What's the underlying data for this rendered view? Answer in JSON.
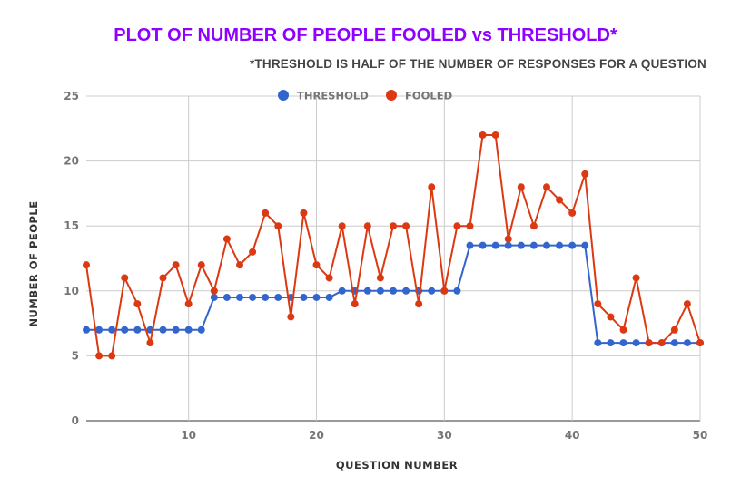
{
  "chart_data": {
    "type": "line",
    "title": "PLOT OF NUMBER OF PEOPLE FOOLED vs THRESHOLD*",
    "subtitle": "*THRESHOLD IS HALF OF THE NUMBER OF RESPONSES FOR A QUESTION",
    "xlabel": "QUESTION NUMBER",
    "ylabel": "NUMBER OF PEOPLE",
    "xlim": [
      2,
      50
    ],
    "ylim": [
      0,
      25
    ],
    "xticks": [
      10,
      20,
      30,
      40,
      50
    ],
    "yticks": [
      0,
      5,
      10,
      15,
      20,
      25
    ],
    "grid": true,
    "legend_position": "top-center",
    "x": [
      2,
      3,
      4,
      5,
      6,
      7,
      8,
      9,
      10,
      11,
      12,
      13,
      14,
      15,
      16,
      17,
      18,
      19,
      20,
      21,
      22,
      23,
      24,
      25,
      26,
      27,
      28,
      29,
      30,
      31,
      32,
      33,
      34,
      35,
      36,
      37,
      38,
      39,
      40,
      41,
      42,
      43,
      44,
      45,
      46,
      47,
      48,
      49,
      50
    ],
    "series": [
      {
        "name": "THRESHOLD",
        "color": "#3366cc",
        "values": [
          7,
          7,
          7,
          7,
          7,
          7,
          7,
          7,
          7,
          7,
          9.5,
          9.5,
          9.5,
          9.5,
          9.5,
          9.5,
          9.5,
          9.5,
          9.5,
          9.5,
          10,
          10,
          10,
          10,
          10,
          10,
          10,
          10,
          10,
          10,
          13.5,
          13.5,
          13.5,
          13.5,
          13.5,
          13.5,
          13.5,
          13.5,
          13.5,
          13.5,
          6,
          6,
          6,
          6,
          6,
          6,
          6,
          6,
          6
        ]
      },
      {
        "name": "FOOLED",
        "color": "#dc3912",
        "values": [
          12,
          5,
          5,
          11,
          9,
          6,
          11,
          12,
          9,
          12,
          10,
          14,
          12,
          13,
          16,
          15,
          8,
          16,
          12,
          11,
          15,
          9,
          15,
          11,
          15,
          15,
          9,
          18,
          10,
          15,
          15,
          22,
          22,
          14,
          18,
          15,
          18,
          17,
          16,
          19,
          9,
          8,
          7,
          11,
          6,
          6,
          7,
          9,
          6
        ]
      }
    ]
  }
}
